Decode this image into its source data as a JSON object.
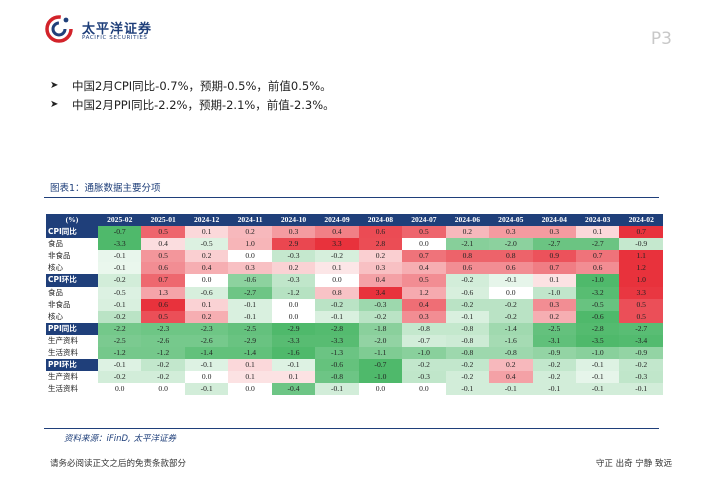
{
  "header": {
    "brand_cn": "太平洋证券",
    "brand_en": "PACIFIC SECURITIES",
    "page_number": "P3"
  },
  "bullets": [
    "中国2月CPI同比-0.7%，预期-0.5%，前值0.5%。",
    "中国2月PPI同比-2.2%，预期-2.1%，前值-2.3%。"
  ],
  "figure": {
    "title": "图表1：通胀数据主要分项",
    "corner": "(%)",
    "columns": [
      "2025-02",
      "2025-01",
      "2024-12",
      "2024-11",
      "2024-10",
      "2024-09",
      "2024-08",
      "2024-07",
      "2024-06",
      "2024-05",
      "2024-04",
      "2024-03",
      "2024-02"
    ],
    "rows": [
      {
        "label": "CPI同比",
        "section": true,
        "values": [
          "-0.7",
          "0.5",
          "0.1",
          "0.2",
          "0.3",
          "0.4",
          "0.6",
          "0.5",
          "0.2",
          "0.3",
          "0.3",
          "0.1",
          "0.7"
        ]
      },
      {
        "label": "食品",
        "section": false,
        "values": [
          "-3.3",
          "0.4",
          "-0.5",
          "1.0",
          "2.9",
          "3.3",
          "2.8",
          "0.0",
          "-2.1",
          "-2.0",
          "-2.7",
          "-2.7",
          "-0.9"
        ]
      },
      {
        "label": "非食品",
        "section": false,
        "values": [
          "-0.1",
          "0.5",
          "0.2",
          "0.0",
          "-0.3",
          "-0.2",
          "0.2",
          "0.7",
          "0.8",
          "0.8",
          "0.9",
          "0.7",
          "1.1"
        ]
      },
      {
        "label": "核心",
        "section": false,
        "values": [
          "-0.1",
          "0.6",
          "0.4",
          "0.3",
          "0.2",
          "0.1",
          "0.3",
          "0.4",
          "0.6",
          "0.6",
          "0.7",
          "0.6",
          "1.2"
        ]
      },
      {
        "label": "CPI环比",
        "section": true,
        "values": [
          "-0.2",
          "0.7",
          "0.0",
          "-0.6",
          "-0.3",
          "0.0",
          "0.4",
          "0.5",
          "-0.2",
          "-0.1",
          "0.1",
          "-1.0",
          "1.0"
        ]
      },
      {
        "label": "食品",
        "section": false,
        "values": [
          "-0.5",
          "1.3",
          "-0.6",
          "-2.7",
          "-1.2",
          "0.8",
          "3.4",
          "1.2",
          "-0.6",
          "0.0",
          "-1.0",
          "-3.2",
          "3.3"
        ]
      },
      {
        "label": "非食品",
        "section": false,
        "values": [
          "-0.1",
          "0.6",
          "0.1",
          "-0.1",
          "0.0",
          "-0.2",
          "-0.3",
          "0.4",
          "-0.2",
          "-0.2",
          "0.3",
          "-0.5",
          "0.5"
        ]
      },
      {
        "label": "核心",
        "section": false,
        "values": [
          "-0.2",
          "0.5",
          "0.2",
          "-0.1",
          "0.0",
          "-0.1",
          "-0.2",
          "0.3",
          "-0.1",
          "-0.2",
          "0.2",
          "-0.6",
          "0.5"
        ]
      },
      {
        "label": "PPI同比",
        "section": true,
        "values": [
          "-2.2",
          "-2.3",
          "-2.3",
          "-2.5",
          "-2.9",
          "-2.8",
          "-1.8",
          "-0.8",
          "-0.8",
          "-1.4",
          "-2.5",
          "-2.8",
          "-2.7"
        ]
      },
      {
        "label": "生产资料",
        "section": false,
        "values": [
          "-2.5",
          "-2.6",
          "-2.6",
          "-2.9",
          "-3.3",
          "-3.3",
          "-2.0",
          "-0.7",
          "-0.8",
          "-1.6",
          "-3.1",
          "-3.5",
          "-3.4"
        ]
      },
      {
        "label": "生活资料",
        "section": false,
        "values": [
          "-1.2",
          "-1.2",
          "-1.4",
          "-1.4",
          "-1.6",
          "-1.3",
          "-1.1",
          "-1.0",
          "-0.8",
          "-0.8",
          "-0.9",
          "-1.0",
          "-0.9"
        ]
      },
      {
        "label": "PPI环比",
        "section": true,
        "values": [
          "-0.1",
          "-0.2",
          "-0.1",
          "0.1",
          "-0.1",
          "-0.6",
          "-0.7",
          "-0.2",
          "-0.2",
          "0.2",
          "-0.2",
          "-0.1",
          "-0.2"
        ]
      },
      {
        "label": "生产资料",
        "section": false,
        "values": [
          "-0.2",
          "-0.2",
          "0.0",
          "0.1",
          "0.1",
          "-0.8",
          "-1.0",
          "-0.3",
          "-0.2",
          "0.4",
          "-0.2",
          "-0.1",
          "-0.3"
        ]
      },
      {
        "label": "生活资料",
        "section": false,
        "values": [
          "0.0",
          "0.0",
          "-0.1",
          "0.0",
          "-0.4",
          "-0.1",
          "0.0",
          "0.0",
          "-0.1",
          "-0.1",
          "-0.1",
          "-0.1",
          "-0.1"
        ]
      }
    ],
    "source": "资料来源：iFinD, 太平洋证券"
  },
  "footer": {
    "disclaimer": "请务必阅读正文之后的免责条款部分",
    "motto": "守正  出奇  宁静  致远"
  },
  "colors": {
    "brand_blue": "#1f3f7a",
    "heat_red": "#e8323c",
    "heat_green": "#4fb96b"
  }
}
